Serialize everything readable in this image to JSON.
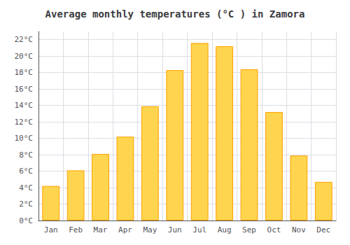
{
  "chart_data": {
    "type": "bar",
    "title": "Average monthly temperatures (°C ) in Zamora",
    "categories": [
      "Jan",
      "Feb",
      "Mar",
      "Apr",
      "May",
      "Jun",
      "Jul",
      "Aug",
      "Sep",
      "Oct",
      "Nov",
      "Dec"
    ],
    "values": [
      4.2,
      6.1,
      8.1,
      10.2,
      13.9,
      18.3,
      21.6,
      21.2,
      18.4,
      13.2,
      7.9,
      4.7
    ],
    "color": "#FFD54F",
    "ylim": [
      0,
      23
    ],
    "yticks": [
      {
        "value": 0,
        "label": "0°C"
      },
      {
        "value": 2,
        "label": "2°C"
      },
      {
        "value": 4,
        "label": "4°C"
      },
      {
        "value": 6,
        "label": "6°C"
      },
      {
        "value": 8,
        "label": "8°C"
      },
      {
        "value": 10,
        "label": "10°C"
      },
      {
        "value": 12,
        "label": "12°C"
      },
      {
        "value": 14,
        "label": "14°C"
      },
      {
        "value": 16,
        "label": "16°C"
      },
      {
        "value": 18,
        "label": "18°C"
      },
      {
        "value": 20,
        "label": "20°C"
      },
      {
        "value": 22,
        "label": "22°C"
      }
    ],
    "grid": true
  }
}
